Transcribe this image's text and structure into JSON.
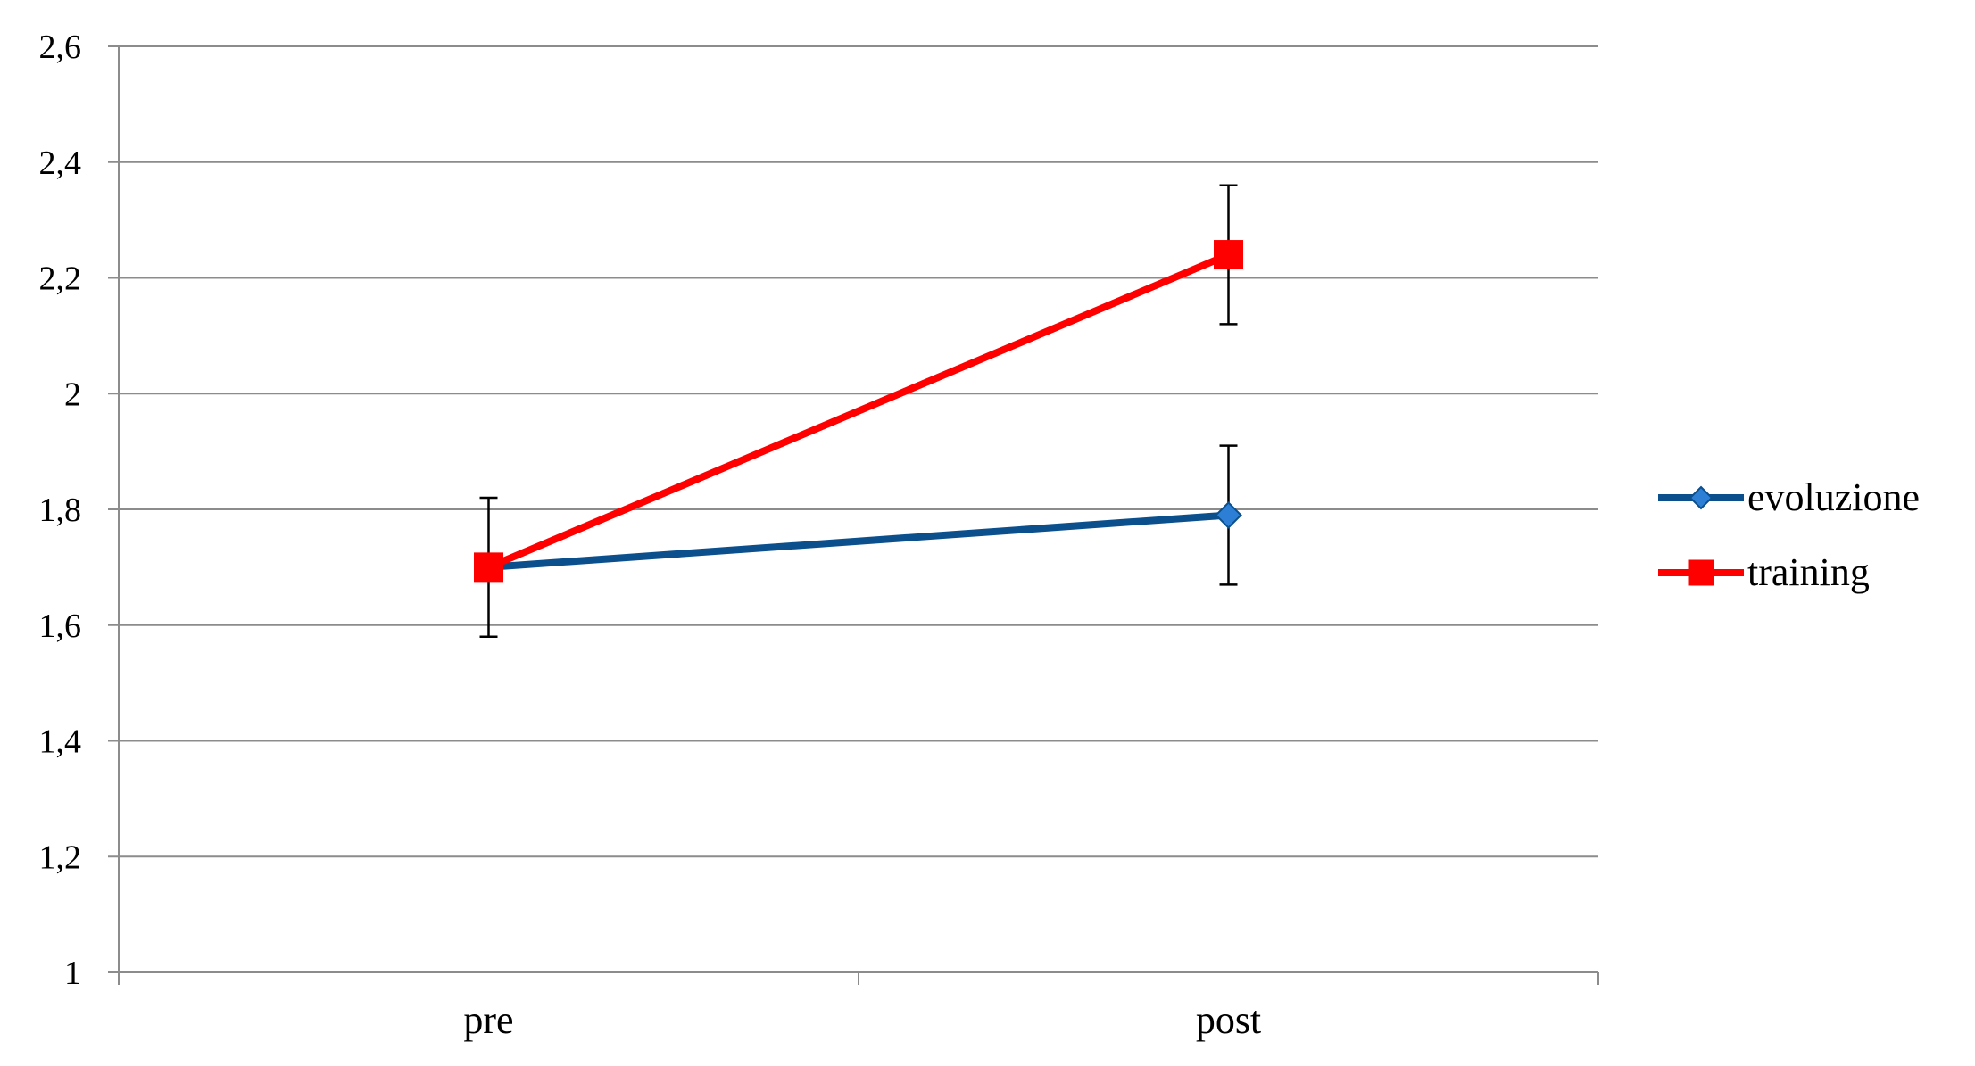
{
  "chart_data": {
    "type": "line",
    "title": "",
    "xlabel": "",
    "ylabel": "",
    "categories": [
      "pre",
      "post"
    ],
    "ylim": [
      1,
      2.6
    ],
    "yticks": [
      1,
      1.2,
      1.4,
      1.6,
      1.8,
      2,
      2.2,
      2.4,
      2.6
    ],
    "ytick_labels": [
      "1",
      "1,2",
      "1,4",
      "1,6",
      "1,8",
      "2",
      "2,2",
      "2,4",
      "2,6"
    ],
    "grid": true,
    "legend_position": "right",
    "series": [
      {
        "name": "evoluzione",
        "values": [
          1.7,
          1.79
        ],
        "errors": [
          null,
          0.12
        ],
        "color": "#0b4f8c",
        "marker": "diamond",
        "marker_color": "#2d7fd6"
      },
      {
        "name": "training",
        "values": [
          1.7,
          2.24
        ],
        "errors": [
          0.12,
          0.12
        ],
        "color": "#ff0000",
        "marker": "square",
        "marker_color": "#ff0000"
      }
    ]
  }
}
